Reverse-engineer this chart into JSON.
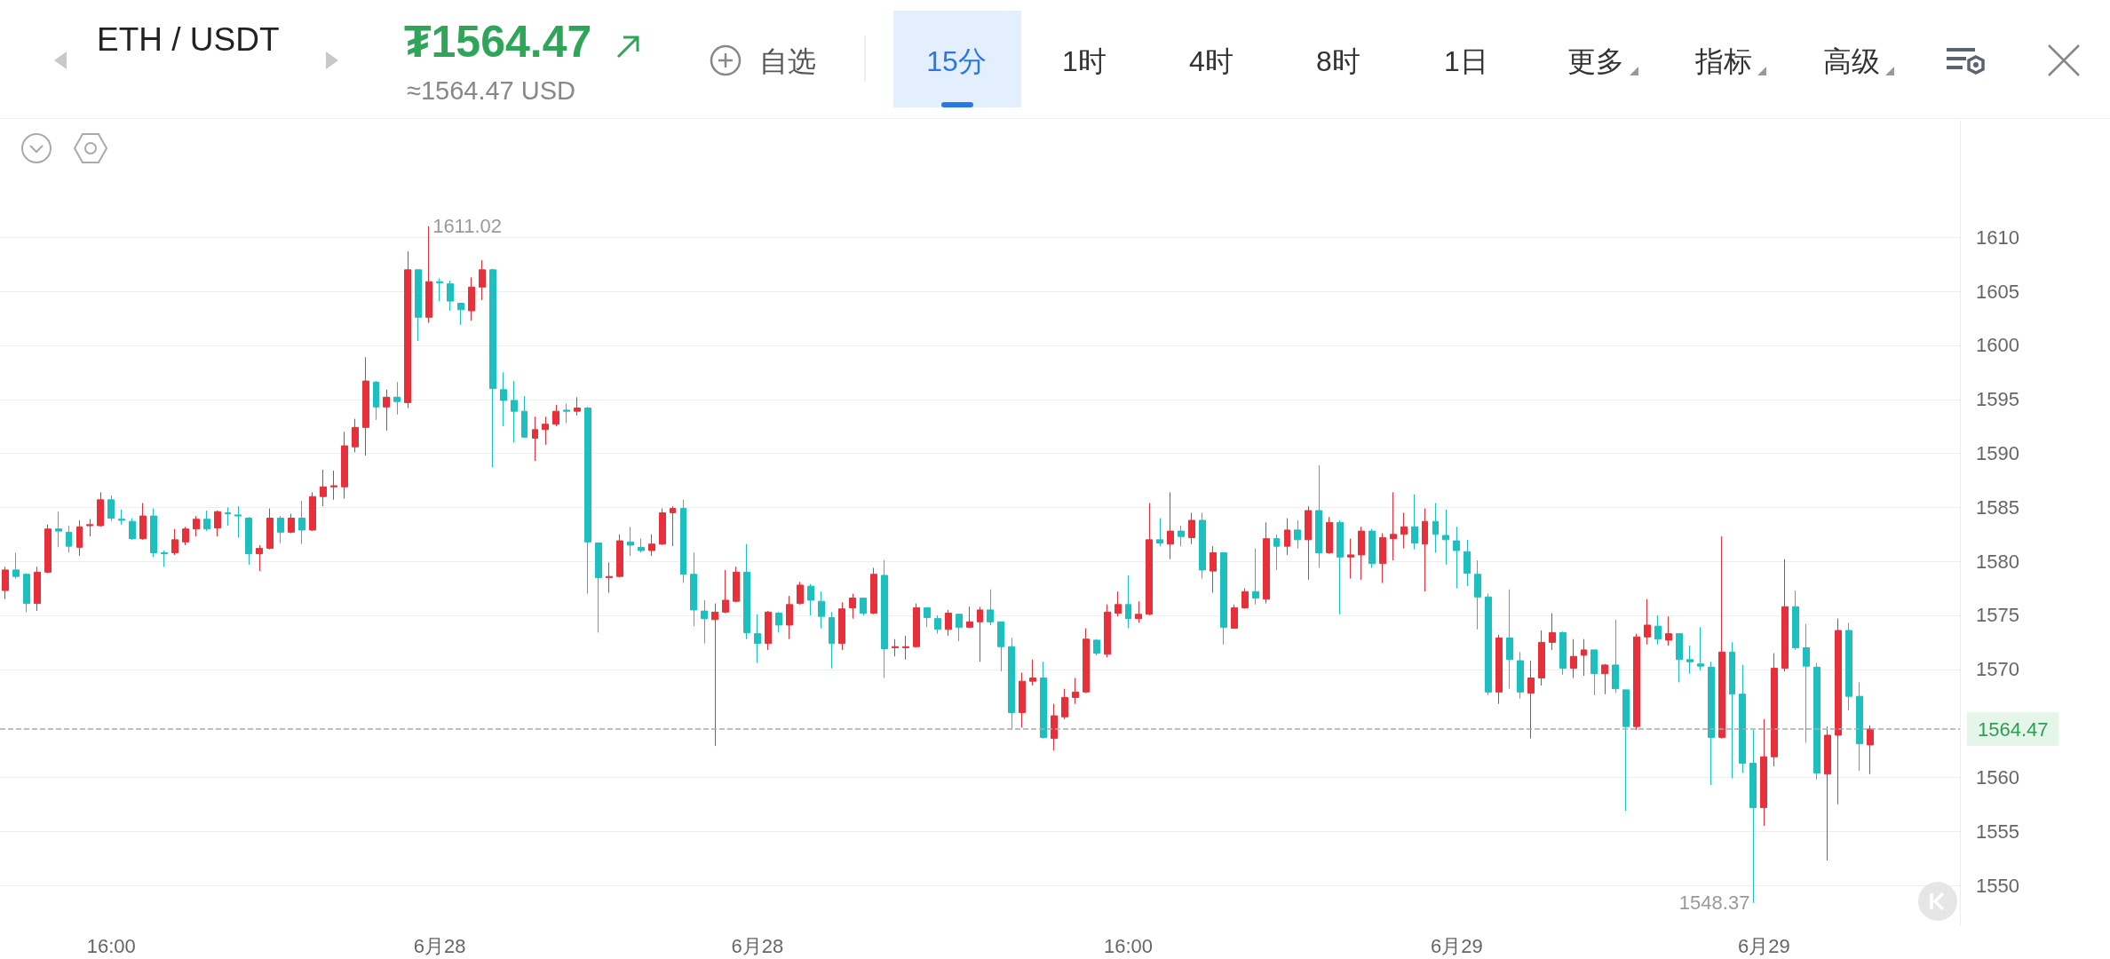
{
  "chart_data": {
    "type": "candlestick",
    "title": "ETH / USDT",
    "subtitle": "≈1564.47 USD",
    "annotations": [
      "1611.02",
      "1548.37",
      "₮1564.47",
      "自选",
      "15分",
      "1时",
      "4时",
      "8时",
      "1日",
      "更多",
      "指标",
      "高级"
    ],
    "categories": [
      null,
      null,
      null,
      null,
      null,
      null,
      null,
      null,
      null,
      null,
      "16:00",
      null,
      null,
      null,
      null,
      null,
      null,
      null,
      null,
      null,
      null,
      null,
      null,
      null,
      null,
      null,
      null,
      null,
      null,
      null,
      null,
      null,
      null,
      null,
      null,
      null,
      null,
      null,
      null,
      null,
      null,
      "6月28",
      null,
      null,
      null,
      null,
      null,
      null,
      null,
      null,
      null,
      null,
      null,
      null,
      null,
      null,
      null,
      null,
      null,
      null,
      null,
      null,
      null,
      null,
      null,
      null,
      null,
      null,
      null,
      null,
      null,
      "6月28",
      null,
      null,
      null,
      null,
      null,
      null,
      null,
      null,
      null,
      null,
      null,
      null,
      null,
      null,
      null,
      null,
      null,
      null,
      null,
      null,
      null,
      null,
      null,
      null,
      null,
      null,
      null,
      null,
      null,
      null,
      null,
      null,
      null,
      null,
      "16:00",
      null,
      null,
      null,
      null,
      null,
      null,
      null,
      null,
      null,
      null,
      null,
      null,
      null,
      null,
      null,
      null,
      null,
      null,
      null,
      null,
      null,
      null,
      null,
      null,
      null,
      null,
      null,
      null,
      null,
      null,
      "6月29",
      null,
      null,
      null,
      null,
      null,
      null,
      null,
      null,
      null,
      null,
      null,
      null,
      null,
      null,
      null,
      null,
      null,
      null,
      null,
      null,
      null,
      null,
      null,
      null,
      null,
      null,
      null,
      null,
      "6月29",
      null,
      null,
      null,
      null,
      null,
      null,
      null,
      null,
      null,
      null
    ],
    "ohlc": [
      [
        1577.3,
        1579.5,
        1576.5,
        1579.2
      ],
      [
        1579.2,
        1580.8,
        1578.4,
        1578.6
      ],
      [
        1578.8,
        1578.9,
        1575.3,
        1576.1
      ],
      [
        1576.1,
        1579.5,
        1575.4,
        1579.0
      ],
      [
        1579.0,
        1583.4,
        1578.9,
        1583.0
      ],
      [
        1583.0,
        1584.6,
        1581.3,
        1582.8
      ],
      [
        1582.7,
        1583.3,
        1580.8,
        1581.4
      ],
      [
        1581.3,
        1583.8,
        1580.5,
        1583.2
      ],
      [
        1583.3,
        1583.9,
        1582.3,
        1583.4
      ],
      [
        1583.3,
        1586.4,
        1583.2,
        1585.7
      ],
      [
        1585.7,
        1586.1,
        1583.7,
        1584.0
      ],
      [
        1583.9,
        1584.8,
        1583.4,
        1583.8
      ],
      [
        1583.7,
        1584.0,
        1582.0,
        1582.1
      ],
      [
        1582.1,
        1585.4,
        1582.0,
        1584.2
      ],
      [
        1584.2,
        1584.9,
        1580.4,
        1580.8
      ],
      [
        1580.8,
        1581.0,
        1579.5,
        1580.7
      ],
      [
        1580.8,
        1583.0,
        1580.6,
        1582.0
      ],
      [
        1581.8,
        1583.2,
        1581.5,
        1583.0
      ],
      [
        1583.0,
        1584.2,
        1582.3,
        1583.9
      ],
      [
        1583.9,
        1584.7,
        1582.8,
        1583.0
      ],
      [
        1583.1,
        1584.7,
        1582.3,
        1584.6
      ],
      [
        1584.5,
        1585.0,
        1583.3,
        1584.4
      ],
      [
        1584.3,
        1585.1,
        1582.2,
        1584.2
      ],
      [
        1584.0,
        1584.1,
        1579.7,
        1580.7
      ],
      [
        1580.7,
        1581.5,
        1579.1,
        1581.2
      ],
      [
        1581.2,
        1584.9,
        1581.1,
        1584.0
      ],
      [
        1584.0,
        1584.2,
        1581.7,
        1582.7
      ],
      [
        1582.7,
        1584.4,
        1582.6,
        1584.0
      ],
      [
        1584.0,
        1585.6,
        1581.6,
        1582.9
      ],
      [
        1582.9,
        1586.4,
        1582.8,
        1586.0
      ],
      [
        1586.0,
        1588.5,
        1585.1,
        1586.9
      ],
      [
        1586.9,
        1588.4,
        1585.7,
        1587.0
      ],
      [
        1586.9,
        1592.0,
        1585.8,
        1590.7
      ],
      [
        1590.6,
        1593.2,
        1590.1,
        1592.4
      ],
      [
        1592.4,
        1598.9,
        1589.8,
        1596.7
      ],
      [
        1596.6,
        1596.7,
        1593.1,
        1594.3
      ],
      [
        1594.3,
        1595.9,
        1592.1,
        1595.2
      ],
      [
        1595.2,
        1596.6,
        1593.6,
        1594.8
      ],
      [
        1594.7,
        1608.7,
        1594.2,
        1607.0
      ],
      [
        1607.0,
        1607.0,
        1600.4,
        1602.6
      ],
      [
        1602.6,
        1611.02,
        1602.1,
        1605.9
      ],
      [
        1605.9,
        1606.2,
        1604.1,
        1605.8
      ],
      [
        1605.7,
        1606.0,
        1603.2,
        1604.1
      ],
      [
        1603.9,
        1603.9,
        1601.9,
        1603.3
      ],
      [
        1603.2,
        1606.3,
        1602.3,
        1605.4
      ],
      [
        1605.4,
        1607.9,
        1604.2,
        1607.0
      ],
      [
        1607.0,
        1607.1,
        1588.7,
        1596.0
      ],
      [
        1595.9,
        1597.5,
        1592.5,
        1594.9
      ],
      [
        1594.9,
        1596.7,
        1591.0,
        1593.9
      ],
      [
        1593.9,
        1595.3,
        1591.5,
        1591.5
      ],
      [
        1591.4,
        1593.4,
        1589.3,
        1592.2
      ],
      [
        1592.2,
        1593.4,
        1590.8,
        1592.7
      ],
      [
        1592.7,
        1594.5,
        1592.5,
        1593.9
      ],
      [
        1594.0,
        1594.6,
        1592.8,
        1593.9
      ],
      [
        1593.9,
        1595.2,
        1593.5,
        1594.2
      ],
      [
        1594.2,
        1594.3,
        1577.0,
        1581.8
      ],
      [
        1581.7,
        1581.7,
        1573.4,
        1578.5
      ],
      [
        1578.5,
        1579.9,
        1577.1,
        1578.6
      ],
      [
        1578.6,
        1582.5,
        1578.5,
        1581.9
      ],
      [
        1581.8,
        1583.2,
        1580.5,
        1581.5
      ],
      [
        1581.3,
        1582.1,
        1580.8,
        1581.0
      ],
      [
        1581.0,
        1582.5,
        1580.5,
        1581.6
      ],
      [
        1581.6,
        1584.9,
        1581.5,
        1584.5
      ],
      [
        1584.5,
        1585.1,
        1581.4,
        1584.9
      ],
      [
        1584.9,
        1585.7,
        1578.0,
        1578.8
      ],
      [
        1578.8,
        1580.8,
        1574.0,
        1575.5
      ],
      [
        1575.4,
        1576.4,
        1572.4,
        1574.7
      ],
      [
        1574.6,
        1576.1,
        1562.9,
        1575.3
      ],
      [
        1575.3,
        1579.2,
        1575.2,
        1576.4
      ],
      [
        1576.3,
        1579.5,
        1576.2,
        1579.0
      ],
      [
        1579.0,
        1581.6,
        1572.8,
        1573.4
      ],
      [
        1573.3,
        1575.1,
        1570.6,
        1572.4
      ],
      [
        1572.4,
        1575.4,
        1571.8,
        1575.3
      ],
      [
        1575.2,
        1575.3,
        1573.4,
        1574.1
      ],
      [
        1574.1,
        1576.8,
        1572.8,
        1576.0
      ],
      [
        1576.1,
        1578.1,
        1576.0,
        1577.8
      ],
      [
        1577.7,
        1577.9,
        1575.0,
        1576.4
      ],
      [
        1576.3,
        1577.2,
        1573.8,
        1574.9
      ],
      [
        1574.8,
        1575.3,
        1570.1,
        1572.4
      ],
      [
        1572.4,
        1576.2,
        1571.8,
        1575.6
      ],
      [
        1575.7,
        1577.0,
        1574.7,
        1576.6
      ],
      [
        1576.6,
        1576.6,
        1575.0,
        1575.2
      ],
      [
        1575.2,
        1579.4,
        1575.1,
        1578.8
      ],
      [
        1578.7,
        1580.1,
        1569.2,
        1571.9
      ],
      [
        1572.0,
        1572.8,
        1571.2,
        1572.1
      ],
      [
        1572.0,
        1573.1,
        1570.9,
        1572.1
      ],
      [
        1572.1,
        1576.1,
        1572.0,
        1575.7
      ],
      [
        1575.7,
        1575.7,
        1573.9,
        1574.8
      ],
      [
        1574.7,
        1575.0,
        1573.3,
        1573.7
      ],
      [
        1573.7,
        1575.5,
        1573.1,
        1575.2
      ],
      [
        1575.1,
        1575.1,
        1572.6,
        1573.9
      ],
      [
        1573.9,
        1575.8,
        1573.8,
        1574.4
      ],
      [
        1574.4,
        1575.8,
        1570.7,
        1575.5
      ],
      [
        1575.5,
        1577.4,
        1574.1,
        1574.4
      ],
      [
        1574.4,
        1574.4,
        1569.8,
        1572.1
      ],
      [
        1572.1,
        1572.9,
        1564.4,
        1566.0
      ],
      [
        1566.0,
        1569.7,
        1564.6,
        1568.9
      ],
      [
        1568.9,
        1570.9,
        1568.5,
        1569.2
      ],
      [
        1569.2,
        1570.7,
        1563.6,
        1563.7
      ],
      [
        1563.6,
        1566.8,
        1562.5,
        1565.7
      ],
      [
        1565.6,
        1568.2,
        1565.4,
        1567.4
      ],
      [
        1567.4,
        1569.2,
        1566.8,
        1567.9
      ],
      [
        1567.9,
        1573.8,
        1567.8,
        1572.8
      ],
      [
        1572.7,
        1572.8,
        1571.3,
        1571.5
      ],
      [
        1571.4,
        1576.0,
        1571.1,
        1575.3
      ],
      [
        1575.2,
        1577.2,
        1574.9,
        1576.0
      ],
      [
        1576.0,
        1578.7,
        1573.8,
        1574.7
      ],
      [
        1574.7,
        1576.3,
        1574.3,
        1575.1
      ],
      [
        1575.1,
        1585.4,
        1575.0,
        1582.0
      ],
      [
        1582.0,
        1584.0,
        1581.4,
        1581.7
      ],
      [
        1581.6,
        1586.4,
        1580.2,
        1582.8
      ],
      [
        1582.8,
        1583.3,
        1581.4,
        1582.3
      ],
      [
        1582.2,
        1584.5,
        1581.6,
        1583.8
      ],
      [
        1583.8,
        1584.5,
        1578.4,
        1579.2
      ],
      [
        1579.1,
        1581.4,
        1577.1,
        1580.8
      ],
      [
        1580.8,
        1580.8,
        1572.3,
        1573.9
      ],
      [
        1573.8,
        1576.0,
        1573.8,
        1575.7
      ],
      [
        1575.7,
        1577.5,
        1575.6,
        1577.2
      ],
      [
        1577.2,
        1581.2,
        1576.0,
        1576.6
      ],
      [
        1576.5,
        1583.6,
        1576.1,
        1582.1
      ],
      [
        1582.1,
        1582.5,
        1579.2,
        1581.4
      ],
      [
        1581.4,
        1584.0,
        1580.6,
        1582.9
      ],
      [
        1582.9,
        1583.8,
        1581.2,
        1582.0
      ],
      [
        1582.0,
        1585.1,
        1578.3,
        1584.7
      ],
      [
        1584.7,
        1588.9,
        1579.4,
        1580.8
      ],
      [
        1580.8,
        1584.1,
        1580.7,
        1583.6
      ],
      [
        1583.6,
        1583.8,
        1575.1,
        1580.4
      ],
      [
        1580.4,
        1582.1,
        1578.4,
        1580.6
      ],
      [
        1580.6,
        1583.2,
        1578.3,
        1582.8
      ],
      [
        1582.8,
        1583.0,
        1579.4,
        1579.8
      ],
      [
        1579.8,
        1582.6,
        1578.0,
        1582.2
      ],
      [
        1582.1,
        1586.4,
        1580.1,
        1582.5
      ],
      [
        1582.5,
        1584.5,
        1581.2,
        1583.2
      ],
      [
        1583.2,
        1586.2,
        1581.1,
        1581.7
      ],
      [
        1581.6,
        1584.9,
        1577.2,
        1583.7
      ],
      [
        1583.7,
        1585.4,
        1580.8,
        1582.5
      ],
      [
        1582.4,
        1584.8,
        1579.7,
        1582.0
      ],
      [
        1581.9,
        1583.2,
        1577.5,
        1581.0
      ],
      [
        1580.9,
        1582.0,
        1577.7,
        1578.9
      ],
      [
        1578.8,
        1580.1,
        1573.7,
        1576.7
      ],
      [
        1576.7,
        1577.0,
        1567.6,
        1567.9
      ],
      [
        1567.9,
        1573.2,
        1566.8,
        1572.9
      ],
      [
        1572.9,
        1577.4,
        1568.2,
        1570.9
      ],
      [
        1570.8,
        1571.6,
        1567.3,
        1567.9
      ],
      [
        1567.8,
        1570.8,
        1563.6,
        1569.2
      ],
      [
        1569.2,
        1573.6,
        1568.5,
        1572.5
      ],
      [
        1572.5,
        1575.2,
        1571.8,
        1573.4
      ],
      [
        1573.4,
        1573.5,
        1569.5,
        1570.1
      ],
      [
        1570.1,
        1572.8,
        1569.2,
        1571.2
      ],
      [
        1571.3,
        1572.8,
        1569.4,
        1571.8
      ],
      [
        1571.8,
        1571.8,
        1567.6,
        1569.6
      ],
      [
        1569.6,
        1570.5,
        1567.7,
        1570.4
      ],
      [
        1570.4,
        1574.6,
        1567.8,
        1568.2
      ],
      [
        1568.1,
        1568.1,
        1556.9,
        1564.7
      ],
      [
        1564.7,
        1573.3,
        1564.4,
        1573.0
      ],
      [
        1573.0,
        1576.5,
        1572.3,
        1574.1
      ],
      [
        1574.0,
        1575.0,
        1572.3,
        1572.8
      ],
      [
        1572.7,
        1574.9,
        1572.2,
        1573.3
      ],
      [
        1573.3,
        1573.3,
        1568.8,
        1570.9
      ],
      [
        1570.9,
        1572.2,
        1569.6,
        1570.7
      ],
      [
        1570.5,
        1573.9,
        1569.9,
        1570.3
      ],
      [
        1570.2,
        1570.7,
        1559.3,
        1563.7
      ],
      [
        1563.7,
        1582.3,
        1563.6,
        1571.6
      ],
      [
        1571.6,
        1572.5,
        1559.9,
        1567.7
      ],
      [
        1567.7,
        1570.4,
        1560.4,
        1561.3
      ],
      [
        1561.3,
        1564.4,
        1548.37,
        1557.2
      ],
      [
        1557.2,
        1565.4,
        1555.5,
        1561.9
      ],
      [
        1561.9,
        1571.5,
        1561.0,
        1570.1
      ],
      [
        1570.1,
        1580.2,
        1569.8,
        1575.8
      ],
      [
        1575.8,
        1577.3,
        1571.8,
        1572.0
      ],
      [
        1572.0,
        1574.2,
        1563.2,
        1570.3
      ],
      [
        1570.2,
        1570.6,
        1559.8,
        1560.4
      ],
      [
        1560.3,
        1564.7,
        1552.3,
        1563.9
      ],
      [
        1563.9,
        1574.7,
        1557.5,
        1573.6
      ],
      [
        1573.6,
        1574.3,
        1566.2,
        1567.5
      ],
      [
        1567.5,
        1568.8,
        1560.6,
        1563.1
      ],
      [
        1563.0,
        1564.8,
        1560.3,
        1564.47
      ]
    ],
    "ylim": [
      1546.3,
      1620.8
    ],
    "yticks": [
      1550,
      1555,
      1560,
      1570,
      1575,
      1580,
      1585,
      1590,
      1595,
      1600,
      1605,
      1610
    ],
    "ref_lines": [
      {
        "axis": "y",
        "value": 1564.47,
        "label": "1564.47",
        "color": "#aaaaaa",
        "line_style": "dashed"
      }
    ],
    "grid": "y"
  }
}
